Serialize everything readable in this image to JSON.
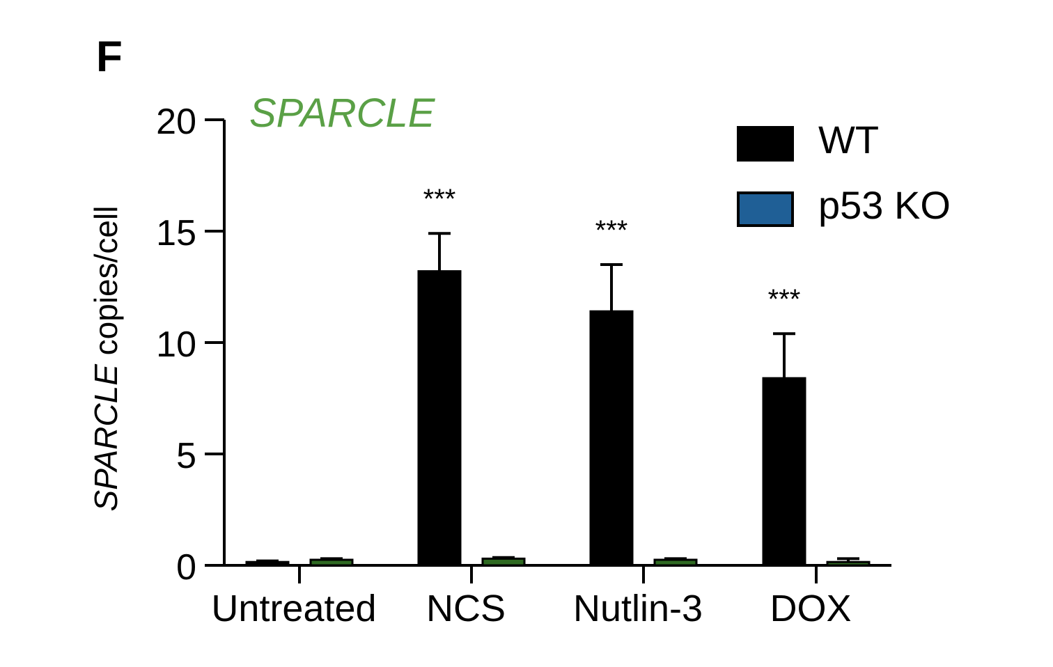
{
  "panel_label": "F",
  "chart_data": {
    "type": "bar",
    "title": "SPARCLE",
    "ylabel_italic": "SPARCLE",
    "ylabel_rest": " copies/cell",
    "categories": [
      "Untreated",
      "NCS",
      "Nutlin-3",
      "DOX"
    ],
    "ylim": [
      0,
      20
    ],
    "yticks": [
      0,
      5,
      10,
      15,
      20
    ],
    "ytick_labels": [
      "0",
      "5",
      "10",
      "15",
      "20"
    ],
    "series": [
      {
        "name": "WT",
        "values": [
          0.15,
          13.2,
          11.4,
          8.4
        ],
        "errors": [
          0.05,
          1.7,
          2.1,
          2.0
        ],
        "color": "#000000",
        "marker_color": "#000000"
      },
      {
        "name": "p53 KO",
        "values": [
          0.25,
          0.3,
          0.25,
          0.15
        ],
        "errors": [
          0.05,
          0.05,
          0.05,
          0.15
        ],
        "color": "#2f6a22",
        "marker_color": "#1f5f96"
      }
    ],
    "annotations": [
      {
        "category": "NCS",
        "text": "***"
      },
      {
        "category": "Nutlin-3",
        "text": "***"
      },
      {
        "category": "DOX",
        "text": "***"
      }
    ],
    "title_color": "#5aa046",
    "legend_position": "top-right",
    "grid": false
  }
}
